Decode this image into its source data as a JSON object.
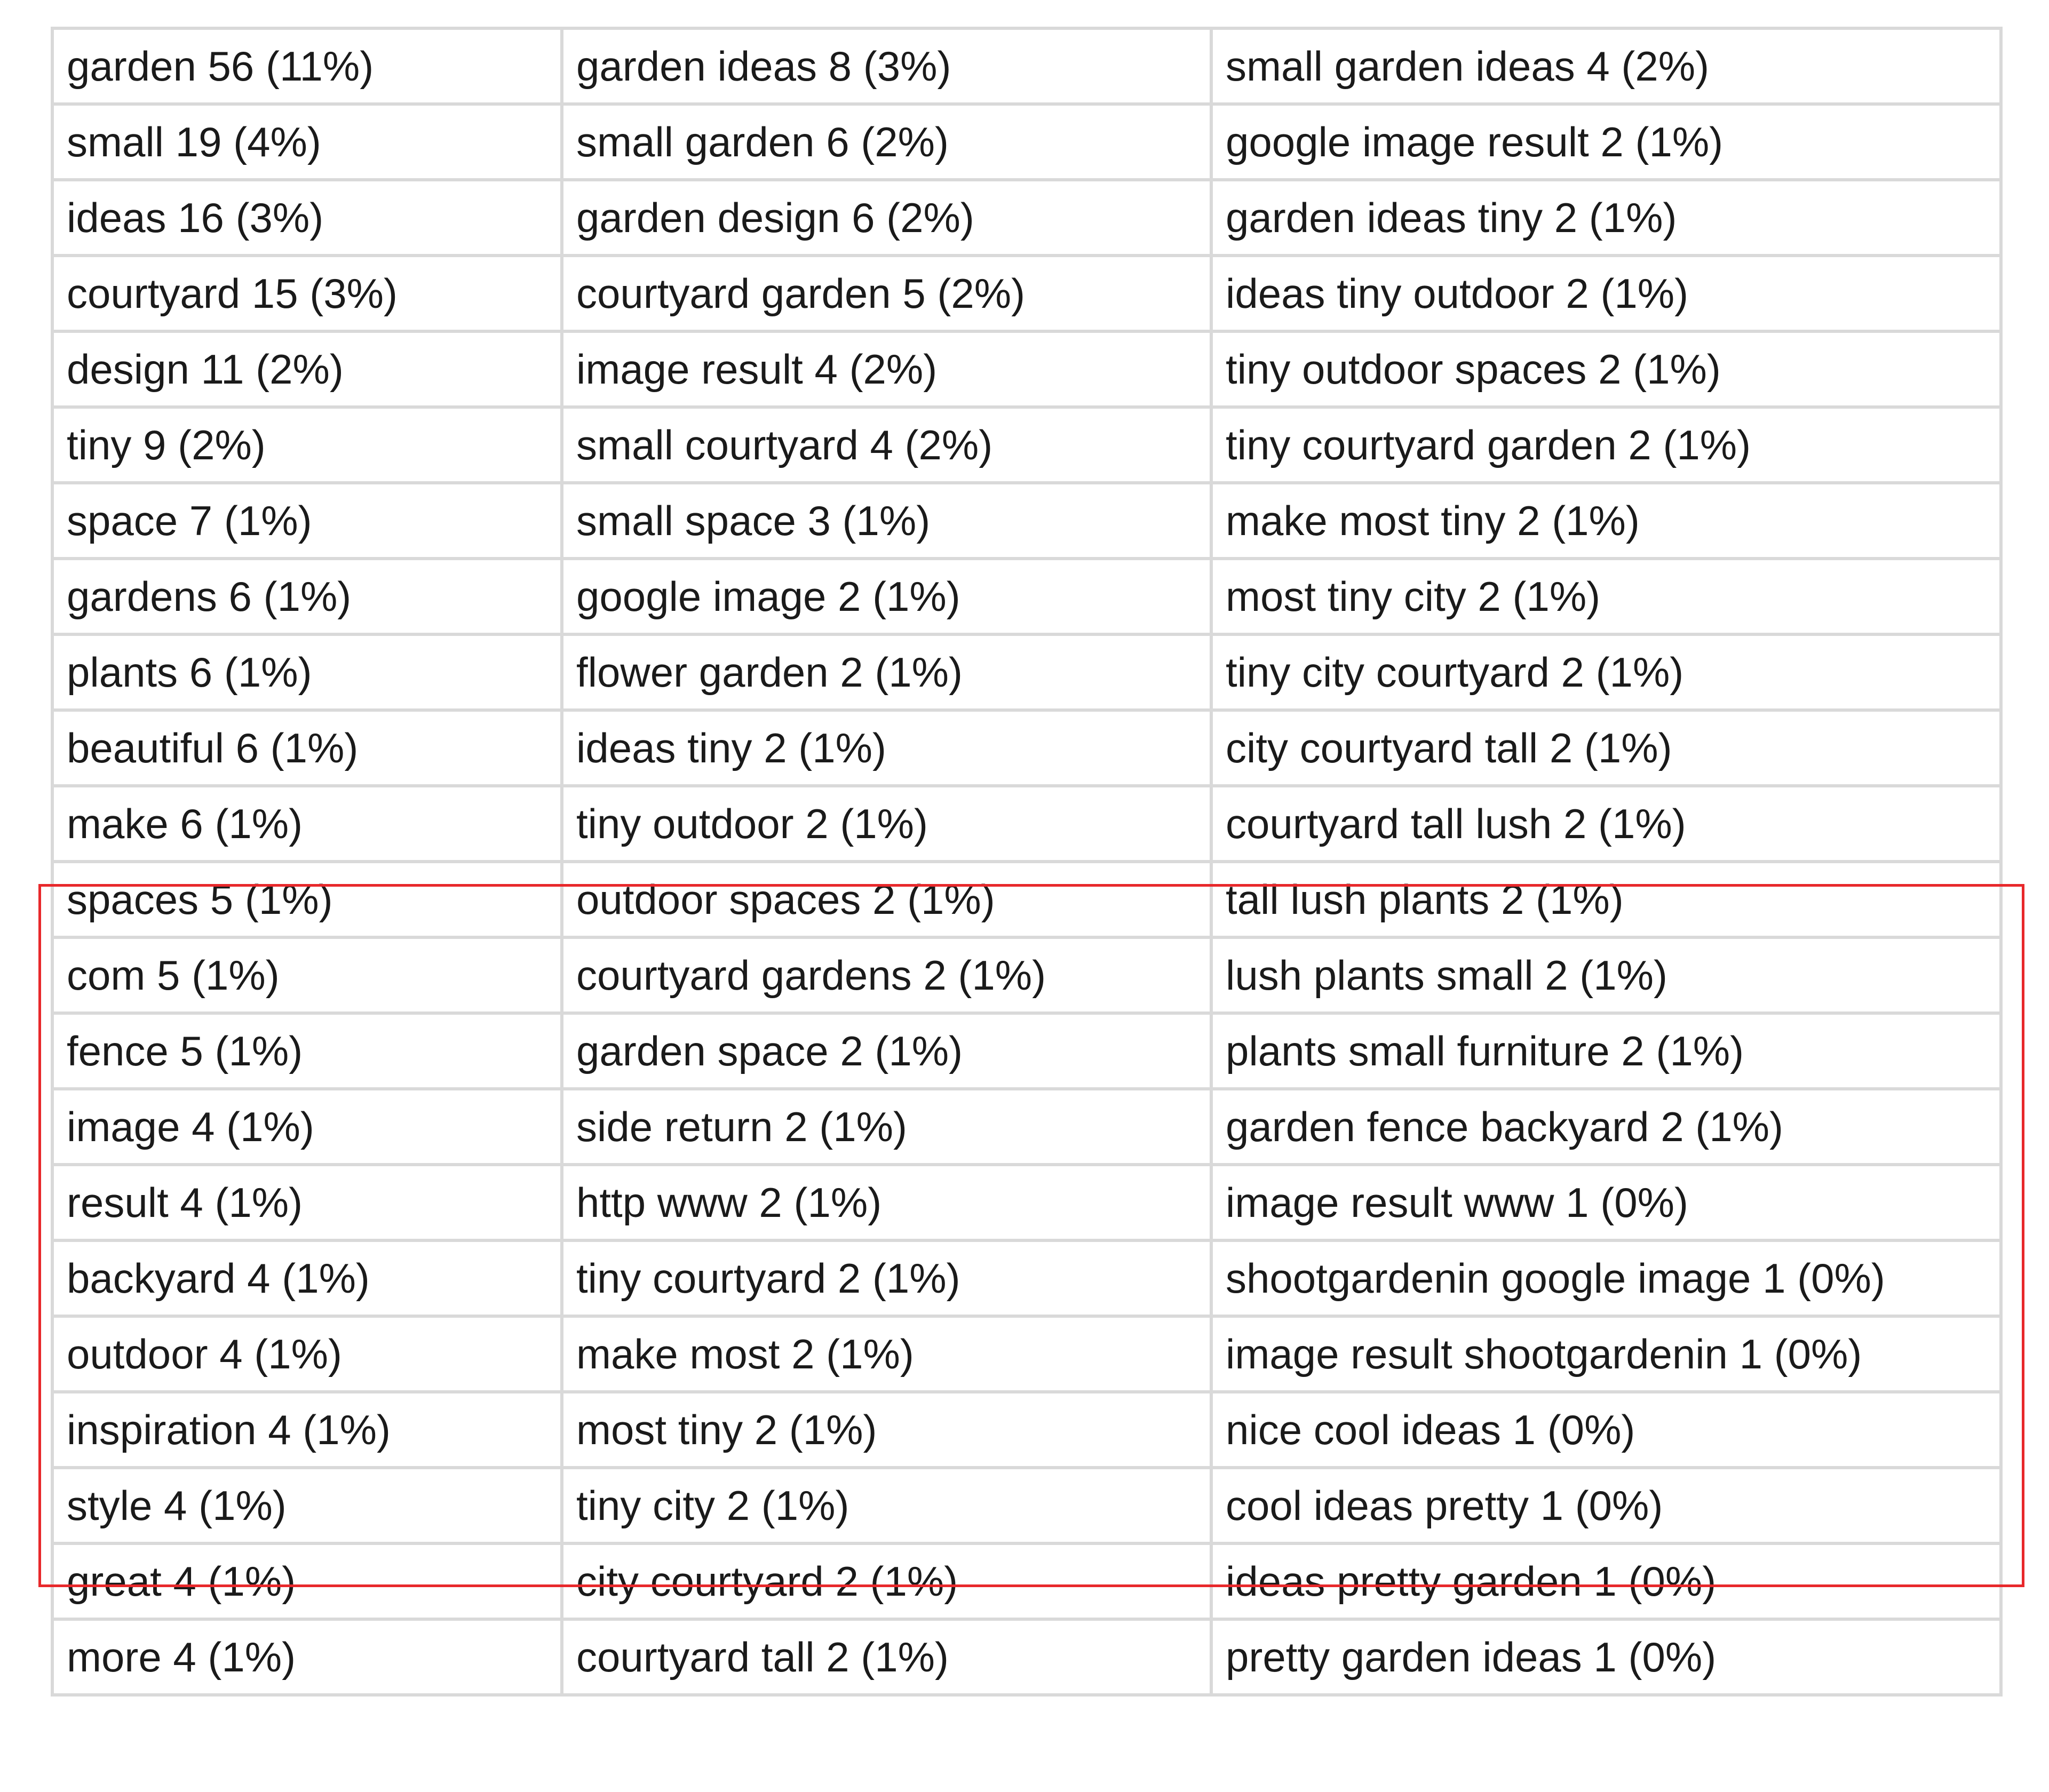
{
  "table": {
    "rows": [
      [
        "garden 56 (11%)",
        "garden ideas 8 (3%)",
        "small garden ideas 4 (2%)"
      ],
      [
        "small 19 (4%)",
        "small garden 6 (2%)",
        "google image result 2 (1%)"
      ],
      [
        "ideas 16 (3%)",
        "garden design 6 (2%)",
        "garden ideas tiny 2 (1%)"
      ],
      [
        "courtyard 15 (3%)",
        "courtyard garden 5 (2%)",
        "ideas tiny outdoor 2 (1%)"
      ],
      [
        "design 11 (2%)",
        "image result 4 (2%)",
        "tiny outdoor spaces 2 (1%)"
      ],
      [
        "tiny 9 (2%)",
        "small courtyard 4 (2%)",
        "tiny courtyard garden 2 (1%)"
      ],
      [
        "space 7 (1%)",
        "small space 3 (1%)",
        "make most tiny 2 (1%)"
      ],
      [
        "gardens 6 (1%)",
        "google image 2 (1%)",
        "most tiny city 2 (1%)"
      ],
      [
        "plants 6 (1%)",
        "flower garden 2 (1%)",
        "tiny city courtyard 2 (1%)"
      ],
      [
        "beautiful 6 (1%)",
        "ideas tiny 2 (1%)",
        "city courtyard tall 2 (1%)"
      ],
      [
        "make 6 (1%)",
        "tiny outdoor 2 (1%)",
        "courtyard tall lush 2 (1%)"
      ],
      [
        "spaces 5 (1%)",
        "outdoor spaces 2 (1%)",
        "tall lush plants 2 (1%)"
      ],
      [
        "com 5 (1%)",
        "courtyard gardens 2 (1%)",
        "lush plants small 2 (1%)"
      ],
      [
        "fence 5 (1%)",
        "garden space 2 (1%)",
        "plants small furniture 2 (1%)"
      ],
      [
        "image 4 (1%)",
        "side return 2 (1%)",
        "garden fence backyard 2 (1%)"
      ],
      [
        "result 4 (1%)",
        "http www 2 (1%)",
        "image result www 1 (0%)"
      ],
      [
        "backyard 4 (1%)",
        "tiny courtyard 2 (1%)",
        "shootgardenin google image 1 (0%)"
      ],
      [
        "outdoor 4 (1%)",
        "make most 2 (1%)",
        "image result shootgardenin 1 (0%)"
      ],
      [
        "inspiration 4 (1%)",
        "most tiny 2 (1%)",
        "nice cool ideas 1 (0%)"
      ],
      [
        "style 4 (1%)",
        "tiny city 2 (1%)",
        "cool ideas pretty 1 (0%)"
      ],
      [
        "great 4 (1%)",
        "city courtyard 2 (1%)",
        "ideas pretty garden 1 (0%)"
      ],
      [
        "more 4 (1%)",
        "courtyard tall 2 (1%)",
        "pretty garden ideas 1 (0%)"
      ]
    ]
  },
  "highlight": {
    "color": "#e8282b"
  }
}
